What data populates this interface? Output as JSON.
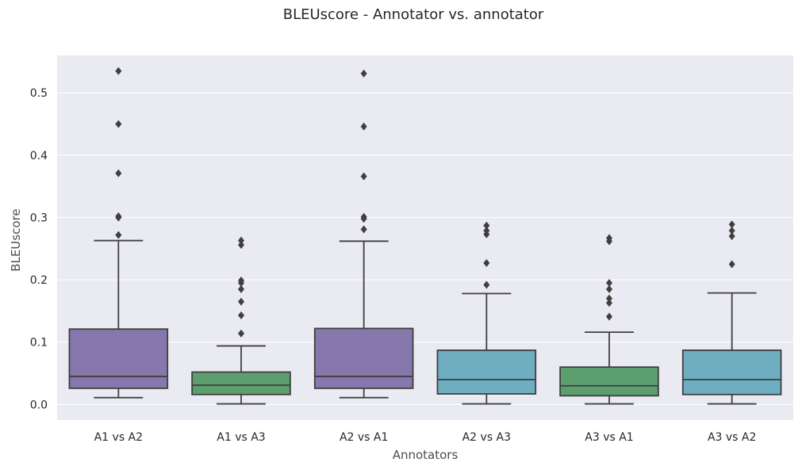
{
  "chart_data": {
    "type": "box",
    "title": "BLEUscore - Annotator vs. annotator",
    "xlabel": "Annotators",
    "ylabel": "BLEUscore",
    "ylim": [
      -0.025,
      0.56
    ],
    "yticks": [
      0.0,
      0.1,
      0.2,
      0.3,
      0.4,
      0.5
    ],
    "ytick_labels": [
      "0.0",
      "0.1",
      "0.2",
      "0.3",
      "0.4",
      "0.5"
    ],
    "grid": true,
    "background_color": "#eaeaf2",
    "categories": [
      "A1 vs A2",
      "A1 vs A3",
      "A2 vs A1",
      "A2 vs A3",
      "A3 vs A1",
      "A3 vs A2"
    ],
    "boxes": [
      {
        "category": "A1 vs A2",
        "color": "#8677ad",
        "whisker_low": 0.011,
        "q1": 0.026,
        "median": 0.045,
        "q3": 0.121,
        "whisker_high": 0.263,
        "outliers": [
          0.272,
          0.3,
          0.302,
          0.371,
          0.45,
          0.535
        ]
      },
      {
        "category": "A1 vs A3",
        "color": "#5c9e6e",
        "whisker_low": 0.001,
        "q1": 0.016,
        "median": 0.031,
        "q3": 0.052,
        "whisker_high": 0.094,
        "outliers": [
          0.114,
          0.143,
          0.165,
          0.185,
          0.195,
          0.199,
          0.256,
          0.263
        ]
      },
      {
        "category": "A2 vs A1",
        "color": "#8677ad",
        "whisker_low": 0.011,
        "q1": 0.026,
        "median": 0.045,
        "q3": 0.122,
        "whisker_high": 0.262,
        "outliers": [
          0.281,
          0.298,
          0.301,
          0.366,
          0.446,
          0.531
        ]
      },
      {
        "category": "A2 vs A3",
        "color": "#6fadc1",
        "whisker_low": 0.001,
        "q1": 0.017,
        "median": 0.04,
        "q3": 0.087,
        "whisker_high": 0.178,
        "outliers": [
          0.192,
          0.227,
          0.273,
          0.279,
          0.287
        ]
      },
      {
        "category": "A3 vs A1",
        "color": "#5c9e6e",
        "whisker_low": 0.001,
        "q1": 0.014,
        "median": 0.03,
        "q3": 0.06,
        "whisker_high": 0.116,
        "outliers": [
          0.141,
          0.163,
          0.17,
          0.185,
          0.195,
          0.262,
          0.267
        ]
      },
      {
        "category": "A3 vs A2",
        "color": "#6fadc1",
        "whisker_low": 0.001,
        "q1": 0.016,
        "median": 0.04,
        "q3": 0.087,
        "whisker_high": 0.179,
        "outliers": [
          0.225,
          0.27,
          0.279,
          0.289
        ]
      }
    ],
    "line_color": "#3f3f3f"
  }
}
